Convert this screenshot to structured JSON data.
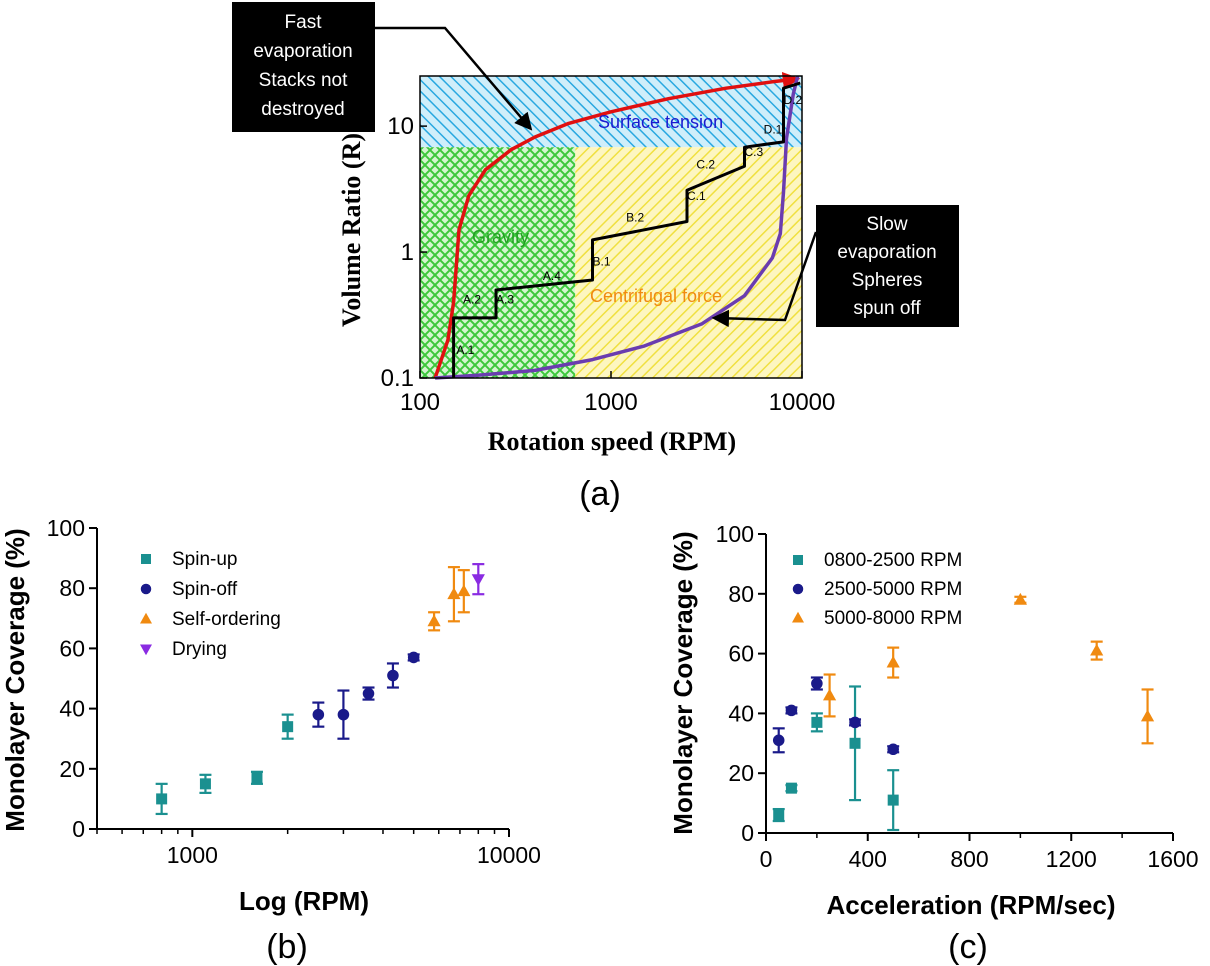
{
  "chart_data": [
    {
      "id": "a",
      "type": "line",
      "panel_label": "(a)",
      "xlabel": "Rotation speed (RPM)",
      "ylabel": "Volume Ratio (R)",
      "xscale": "log",
      "yscale": "log",
      "xlim": [
        100,
        10000
      ],
      "ylim": [
        0.1,
        25
      ],
      "x_ticks": [
        "100",
        "1000",
        "10000"
      ],
      "y_ticks": [
        "0.1",
        "1",
        "10"
      ],
      "regions": [
        {
          "label": "Surface tension",
          "color": "#29a8e0",
          "label_color": "#1a1ad0"
        },
        {
          "label": "Gravity",
          "color": "#3cc83c",
          "label_color": "#22a022"
        },
        {
          "label": "Centrifugal force",
          "color": "#f0e040",
          "label_color": "#f08a10"
        }
      ],
      "series": [
        {
          "color": "#e01010",
          "x": [
            120,
            140,
            150,
            160,
            180,
            220,
            300,
            400,
            600,
            1000,
            2000,
            4000,
            7000,
            9000
          ],
          "y": [
            0.1,
            0.2,
            0.4,
            1.5,
            2.8,
            4.5,
            6.5,
            8.2,
            10.5,
            13,
            16.5,
            20,
            22.5,
            23.5
          ]
        },
        {
          "color": "#6a3cb0",
          "x": [
            120,
            200,
            400,
            800,
            1500,
            3000,
            5000,
            7000,
            7700,
            8000,
            8300,
            9000,
            9500
          ],
          "y": [
            0.1,
            0.105,
            0.115,
            0.14,
            0.18,
            0.27,
            0.45,
            0.9,
            1.4,
            3,
            8,
            18,
            25
          ]
        },
        {
          "color": "#000000",
          "x": [
            150,
            150,
            160,
            160,
            250,
            250,
            800,
            800,
            2500,
            2500,
            5000,
            5000,
            8000,
            8000,
            9800
          ],
          "y": [
            0.1,
            0.3,
            0.3,
            0.3,
            0.3,
            0.5,
            0.6,
            1.25,
            1.75,
            3.1,
            4.8,
            6.8,
            7.5,
            20,
            22
          ]
        }
      ],
      "step_labels": [
        {
          "text": "A.1",
          "x": 155,
          "y": 0.155
        },
        {
          "text": "A.2",
          "x": 168,
          "y": 0.39
        },
        {
          "text": "A.3",
          "x": 250,
          "y": 0.39
        },
        {
          "text": "A.4",
          "x": 440,
          "y": 0.6
        },
        {
          "text": "B.1",
          "x": 800,
          "y": 0.78
        },
        {
          "text": "B.2",
          "x": 1200,
          "y": 1.75
        },
        {
          "text": "C.1",
          "x": 2500,
          "y": 2.6
        },
        {
          "text": "C.2",
          "x": 2800,
          "y": 4.6
        },
        {
          "text": "C.3",
          "x": 5000,
          "y": 5.8
        },
        {
          "text": "D.1",
          "x": 6300,
          "y": 8.7
        },
        {
          "text": "D.2",
          "x": 8000,
          "y": 15
        }
      ],
      "annotations": [
        {
          "lines": [
            "Fast",
            "evaporation",
            "Stacks not",
            "destroyed"
          ]
        },
        {
          "lines": [
            "Slow",
            "evaporation",
            "Spheres",
            "spun off"
          ]
        }
      ]
    },
    {
      "id": "b",
      "type": "scatter",
      "panel_label": "(b)",
      "xlabel": "Log (RPM)",
      "ylabel": "Monolayer Coverage (%)",
      "xscale": "log",
      "xlim": [
        500,
        10000
      ],
      "ylim": [
        0,
        100
      ],
      "x_ticks": [
        "1000",
        "10000"
      ],
      "y_ticks": [
        "0",
        "20",
        "40",
        "60",
        "80",
        "100"
      ],
      "legend_position": "top-left",
      "series": [
        {
          "name": "Spin-up",
          "marker": "square",
          "color": "#1a9090",
          "points": [
            {
              "x": 800,
              "y": 10,
              "err": 5
            },
            {
              "x": 1100,
              "y": 15,
              "err": 3
            },
            {
              "x": 1600,
              "y": 17,
              "err": 2
            },
            {
              "x": 2000,
              "y": 34,
              "err": 4
            }
          ]
        },
        {
          "name": "Spin-off",
          "marker": "circle",
          "color": "#1a1a8a",
          "points": [
            {
              "x": 2500,
              "y": 38,
              "err": 4
            },
            {
              "x": 3000,
              "y": 38,
              "err": 8
            },
            {
              "x": 3600,
              "y": 45,
              "err": 2
            },
            {
              "x": 4300,
              "y": 51,
              "err": 4
            },
            {
              "x": 5000,
              "y": 57,
              "err": 1
            }
          ]
        },
        {
          "name": "Self-ordering",
          "marker": "triangle-up",
          "color": "#f08a10",
          "points": [
            {
              "x": 5800,
              "y": 69,
              "err": 3
            },
            {
              "x": 6700,
              "y": 78,
              "err": 9
            },
            {
              "x": 7200,
              "y": 79,
              "err": 7
            }
          ]
        },
        {
          "name": "Drying",
          "marker": "triangle-down",
          "color": "#8a2be2",
          "points": [
            {
              "x": 8000,
              "y": 83,
              "err": 5
            }
          ]
        }
      ]
    },
    {
      "id": "c",
      "type": "scatter",
      "panel_label": "(c)",
      "xlabel": "Acceleration (RPM/sec)",
      "ylabel": "Monolayer Coverage (%)",
      "xlim": [
        0,
        1600
      ],
      "ylim": [
        0,
        100
      ],
      "x_ticks": [
        "0",
        "400",
        "800",
        "1200",
        "1600"
      ],
      "y_ticks": [
        "0",
        "20",
        "40",
        "60",
        "80",
        "100"
      ],
      "legend_position": "top-left",
      "series": [
        {
          "name": "0800-2500 RPM",
          "marker": "square",
          "color": "#1a9090",
          "points": [
            {
              "x": 50,
              "y": 6,
              "err": 2
            },
            {
              "x": 100,
              "y": 15,
              "err": 1
            },
            {
              "x": 200,
              "y": 37,
              "err": 3
            },
            {
              "x": 350,
              "y": 30,
              "err": 19
            },
            {
              "x": 500,
              "y": 11,
              "err": 10
            }
          ]
        },
        {
          "name": "2500-5000 RPM",
          "marker": "circle",
          "color": "#1a1a8a",
          "points": [
            {
              "x": 50,
              "y": 31,
              "err": 4
            },
            {
              "x": 100,
              "y": 41,
              "err": 1
            },
            {
              "x": 200,
              "y": 50,
              "err": 2
            },
            {
              "x": 350,
              "y": 37,
              "err": 1
            },
            {
              "x": 500,
              "y": 28,
              "err": 1
            }
          ]
        },
        {
          "name": "5000-8000 RPM",
          "marker": "triangle-up",
          "color": "#f08a10",
          "points": [
            {
              "x": 250,
              "y": 46,
              "err": 7
            },
            {
              "x": 500,
              "y": 57,
              "err": 5
            },
            {
              "x": 1000,
              "y": 78,
              "err": 1
            },
            {
              "x": 1300,
              "y": 61,
              "err": 3
            },
            {
              "x": 1500,
              "y": 39,
              "err": 9
            }
          ]
        }
      ]
    }
  ]
}
